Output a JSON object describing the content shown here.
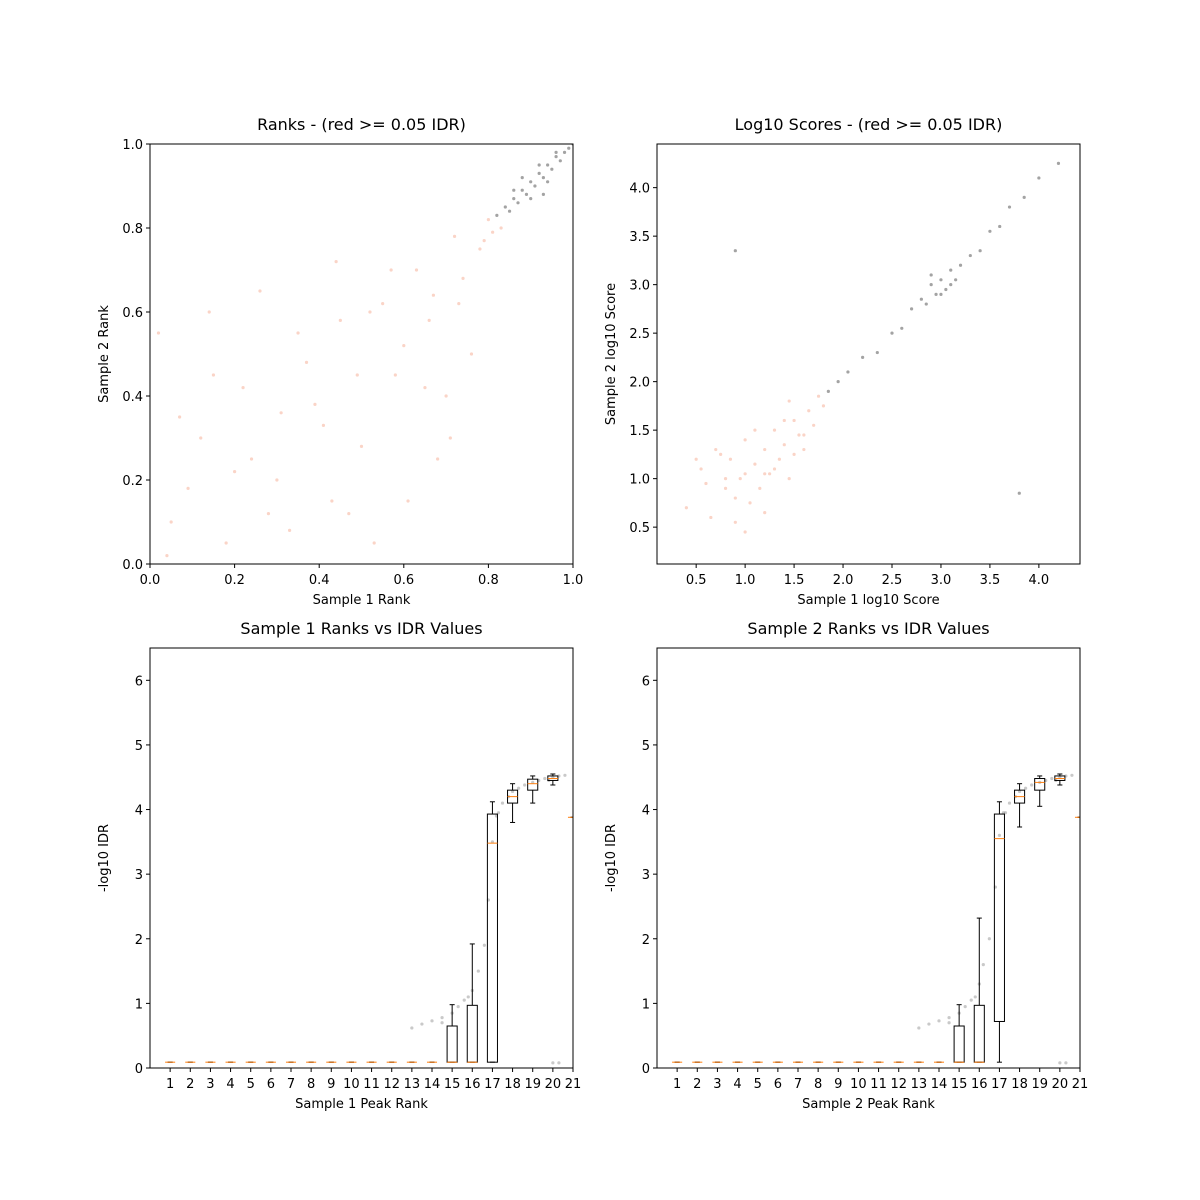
{
  "chart_data": [
    {
      "type": "scatter",
      "title": "Ranks - (red >= 0.05 IDR)",
      "xlabel": "Sample 1 Rank",
      "ylabel": "Sample 2 Rank",
      "xlim": [
        0,
        1
      ],
      "ylim": [
        0,
        1
      ],
      "xticks": [
        {
          "value": 0,
          "label": "0.0"
        },
        0.2,
        0.4,
        0.6,
        0.8,
        {
          "value": 1,
          "label": "1.0"
        }
      ],
      "yticks": [
        {
          "value": 0,
          "label": "0.0"
        },
        0.2,
        0.4,
        0.6,
        0.8,
        {
          "value": 1,
          "label": "1.0"
        }
      ],
      "series": [
        {
          "color": "#f4a083",
          "x": [
            0.05,
            0.12,
            0.18,
            0.22,
            0.3,
            0.35,
            0.41,
            0.47,
            0.52,
            0.58,
            0.63,
            0.68,
            0.72,
            0.76,
            0.8,
            0.02,
            0.09,
            0.15,
            0.26,
            0.33,
            0.39,
            0.44,
            0.5,
            0.55,
            0.61,
            0.66,
            0.7,
            0.74,
            0.78,
            0.83,
            0.07,
            0.2,
            0.28,
            0.37,
            0.45,
            0.53,
            0.6,
            0.67,
            0.71,
            0.79,
            0.04,
            0.14,
            0.24,
            0.31,
            0.43,
            0.49,
            0.57,
            0.65,
            0.73,
            0.81
          ],
          "y": [
            0.1,
            0.3,
            0.05,
            0.42,
            0.2,
            0.55,
            0.33,
            0.12,
            0.6,
            0.45,
            0.7,
            0.25,
            0.78,
            0.5,
            0.82,
            0.55,
            0.18,
            0.45,
            0.65,
            0.08,
            0.38,
            0.72,
            0.28,
            0.62,
            0.15,
            0.58,
            0.4,
            0.68,
            0.75,
            0.8,
            0.35,
            0.22,
            0.12,
            0.48,
            0.58,
            0.05,
            0.52,
            0.64,
            0.3,
            0.77,
            0.02,
            0.6,
            0.25,
            0.36,
            0.15,
            0.45,
            0.7,
            0.42,
            0.62,
            0.79
          ]
        },
        {
          "color": "#333333",
          "x": [
            0.82,
            0.84,
            0.85,
            0.86,
            0.87,
            0.88,
            0.89,
            0.9,
            0.91,
            0.92,
            0.93,
            0.94,
            0.95,
            0.96,
            0.97,
            0.98,
            0.99,
            1.0,
            0.88,
            0.9,
            0.92,
            0.94,
            0.96,
            0.86,
            0.93
          ],
          "y": [
            0.83,
            0.85,
            0.84,
            0.87,
            0.86,
            0.89,
            0.88,
            0.91,
            0.9,
            0.93,
            0.92,
            0.95,
            0.94,
            0.97,
            0.96,
            0.98,
            0.99,
            1.0,
            0.92,
            0.87,
            0.95,
            0.91,
            0.98,
            0.89,
            0.88
          ]
        }
      ]
    },
    {
      "type": "scatter",
      "title": "Log10 Scores - (red >= 0.05 IDR)",
      "xlabel": "Sample 1 log10 Score",
      "ylabel": "Sample 2 log10 Score",
      "xlim": [
        0.1,
        4.42
      ],
      "ylim": [
        0.12,
        4.45
      ],
      "xticks": [
        0.5,
        {
          "value": 1,
          "label": "1.0"
        },
        1.5,
        {
          "value": 2,
          "label": "2.0"
        },
        2.5,
        {
          "value": 3,
          "label": "3.0"
        },
        3.5,
        {
          "value": 4,
          "label": "4.0"
        }
      ],
      "yticks": [
        0.5,
        {
          "value": 1,
          "label": "1.0"
        },
        1.5,
        {
          "value": 2,
          "label": "2.0"
        },
        2.5,
        {
          "value": 3,
          "label": "3.0"
        },
        3.5,
        {
          "value": 4,
          "label": "4.0"
        }
      ],
      "series": [
        {
          "color": "#f4a083",
          "x": [
            0.4,
            0.55,
            0.65,
            0.7,
            0.8,
            0.85,
            0.9,
            0.95,
            1.0,
            1.05,
            1.1,
            1.15,
            1.2,
            1.25,
            1.3,
            1.35,
            1.4,
            1.45,
            1.5,
            1.55,
            1.6,
            1.65,
            1.7,
            1.75,
            1.8,
            0.6,
            0.75,
            0.9,
            1.0,
            1.1,
            1.2,
            1.3,
            1.4,
            1.5,
            1.6,
            0.5,
            0.8,
            1.0,
            1.2,
            1.45
          ],
          "y": [
            0.7,
            1.1,
            0.6,
            1.3,
            0.9,
            1.2,
            0.55,
            1.0,
            1.4,
            0.75,
            1.15,
            0.9,
            1.3,
            1.05,
            1.5,
            1.2,
            1.35,
            1.0,
            1.6,
            1.45,
            1.3,
            1.7,
            1.55,
            1.85,
            1.75,
            0.95,
            1.25,
            0.8,
            1.05,
            1.5,
            0.65,
            1.1,
            1.6,
            1.25,
            1.45,
            1.2,
            1.0,
            0.45,
            1.05,
            1.8
          ]
        },
        {
          "color": "#333333",
          "x": [
            1.85,
            1.95,
            2.05,
            2.2,
            2.35,
            2.5,
            2.6,
            2.7,
            2.8,
            2.85,
            2.9,
            2.95,
            3.0,
            3.05,
            3.1,
            3.15,
            3.2,
            3.3,
            3.4,
            3.5,
            3.6,
            3.7,
            3.85,
            4.0,
            4.2,
            2.9,
            3.0,
            3.1,
            0.9,
            3.8
          ],
          "y": [
            1.9,
            2.0,
            2.1,
            2.25,
            2.3,
            2.5,
            2.55,
            2.75,
            2.85,
            2.8,
            3.0,
            2.9,
            3.05,
            2.95,
            3.15,
            3.05,
            3.2,
            3.3,
            3.35,
            3.55,
            3.6,
            3.8,
            3.9,
            4.1,
            4.25,
            3.1,
            2.9,
            3.0,
            3.35,
            0.85
          ]
        }
      ]
    },
    {
      "type": "box",
      "title": "Sample 1 Ranks vs IDR Values",
      "xlabel": "Sample 1 Peak Rank",
      "ylabel": "-log10 IDR",
      "xlim": [
        0,
        21
      ],
      "ylim": [
        0,
        6.5
      ],
      "xticks": [
        1,
        2,
        3,
        4,
        5,
        6,
        7,
        8,
        9,
        10,
        11,
        12,
        13,
        14,
        15,
        16,
        17,
        18,
        19,
        20,
        21
      ],
      "yticks": [
        0,
        1,
        2,
        3,
        4,
        5,
        6
      ],
      "box_color": "#000000",
      "median_color": "#ff7f0e",
      "boxes": [
        {
          "position": 1,
          "whislo": 0.09,
          "q1": 0.09,
          "med": 0.09,
          "q3": 0.09,
          "whishi": 0.09
        },
        {
          "position": 2,
          "whislo": 0.09,
          "q1": 0.09,
          "med": 0.09,
          "q3": 0.09,
          "whishi": 0.09
        },
        {
          "position": 3,
          "whislo": 0.09,
          "q1": 0.09,
          "med": 0.09,
          "q3": 0.09,
          "whishi": 0.09
        },
        {
          "position": 4,
          "whislo": 0.09,
          "q1": 0.09,
          "med": 0.09,
          "q3": 0.09,
          "whishi": 0.09
        },
        {
          "position": 5,
          "whislo": 0.09,
          "q1": 0.09,
          "med": 0.09,
          "q3": 0.09,
          "whishi": 0.09
        },
        {
          "position": 6,
          "whislo": 0.09,
          "q1": 0.09,
          "med": 0.09,
          "q3": 0.09,
          "whishi": 0.09
        },
        {
          "position": 7,
          "whislo": 0.09,
          "q1": 0.09,
          "med": 0.09,
          "q3": 0.09,
          "whishi": 0.09
        },
        {
          "position": 8,
          "whislo": 0.09,
          "q1": 0.09,
          "med": 0.09,
          "q3": 0.09,
          "whishi": 0.09
        },
        {
          "position": 9,
          "whislo": 0.09,
          "q1": 0.09,
          "med": 0.09,
          "q3": 0.09,
          "whishi": 0.09
        },
        {
          "position": 10,
          "whislo": 0.09,
          "q1": 0.09,
          "med": 0.09,
          "q3": 0.09,
          "whishi": 0.09
        },
        {
          "position": 11,
          "whislo": 0.09,
          "q1": 0.09,
          "med": 0.09,
          "q3": 0.09,
          "whishi": 0.09
        },
        {
          "position": 12,
          "whislo": 0.09,
          "q1": 0.09,
          "med": 0.09,
          "q3": 0.09,
          "whishi": 0.09
        },
        {
          "position": 13,
          "whislo": 0.09,
          "q1": 0.09,
          "med": 0.09,
          "q3": 0.09,
          "whishi": 0.09
        },
        {
          "position": 14,
          "whislo": 0.09,
          "q1": 0.09,
          "med": 0.09,
          "q3": 0.09,
          "whishi": 0.09
        },
        {
          "position": 15,
          "whislo": 0.09,
          "q1": 0.09,
          "med": 0.09,
          "q3": 0.65,
          "whishi": 0.98
        },
        {
          "position": 16,
          "whislo": 0.09,
          "q1": 0.09,
          "med": 0.09,
          "q3": 0.97,
          "whishi": 1.92
        },
        {
          "position": 17,
          "whislo": 0.09,
          "q1": 0.09,
          "med": 3.48,
          "q3": 3.93,
          "whishi": 4.12
        },
        {
          "position": 18,
          "whislo": 3.8,
          "q1": 4.1,
          "med": 4.2,
          "q3": 4.3,
          "whishi": 4.4
        },
        {
          "position": 19,
          "whislo": 4.1,
          "q1": 4.3,
          "med": 4.4,
          "q3": 4.47,
          "whishi": 4.52
        },
        {
          "position": 20,
          "whislo": 4.38,
          "q1": 4.45,
          "med": 4.48,
          "q3": 4.52,
          "whishi": 4.55
        },
        {
          "position": 21,
          "whislo": 3.88,
          "q1": 3.88,
          "med": 3.88,
          "q3": 3.88,
          "whishi": 3.88
        }
      ],
      "series": [
        {
          "color": "#888888",
          "x": [
            13,
            13.5,
            14,
            14.5,
            15,
            15.3,
            15.6,
            16,
            16.3,
            16.6,
            16.8,
            17,
            17.2,
            17.5,
            17.8,
            18,
            18.3,
            18.6,
            19,
            19.3,
            19.6,
            20,
            20.3,
            20.6,
            14.5,
            15.8,
            17.3,
            19.8,
            20,
            20.3
          ],
          "y": [
            0.62,
            0.68,
            0.73,
            0.78,
            0.85,
            0.95,
            1.05,
            1.2,
            1.5,
            1.9,
            2.6,
            3.5,
            3.9,
            4.1,
            4.2,
            4.28,
            4.33,
            4.38,
            4.42,
            4.45,
            4.48,
            4.5,
            4.52,
            4.53,
            0.7,
            1.1,
            3.95,
            4.45,
            0.08,
            0.08
          ]
        }
      ]
    },
    {
      "type": "box",
      "title": "Sample 2 Ranks vs IDR Values",
      "xlabel": "Sample 2 Peak Rank",
      "ylabel": "-log10 IDR",
      "xlim": [
        0,
        21
      ],
      "ylim": [
        0,
        6.5
      ],
      "xticks": [
        1,
        2,
        3,
        4,
        5,
        6,
        7,
        8,
        9,
        10,
        11,
        12,
        13,
        14,
        15,
        16,
        17,
        18,
        19,
        20,
        21
      ],
      "yticks": [
        0,
        1,
        2,
        3,
        4,
        5,
        6
      ],
      "box_color": "#000000",
      "median_color": "#ff7f0e",
      "boxes": [
        {
          "position": 1,
          "whislo": 0.09,
          "q1": 0.09,
          "med": 0.09,
          "q3": 0.09,
          "whishi": 0.09
        },
        {
          "position": 2,
          "whislo": 0.09,
          "q1": 0.09,
          "med": 0.09,
          "q3": 0.09,
          "whishi": 0.09
        },
        {
          "position": 3,
          "whislo": 0.09,
          "q1": 0.09,
          "med": 0.09,
          "q3": 0.09,
          "whishi": 0.09
        },
        {
          "position": 4,
          "whislo": 0.09,
          "q1": 0.09,
          "med": 0.09,
          "q3": 0.09,
          "whishi": 0.09
        },
        {
          "position": 5,
          "whislo": 0.09,
          "q1": 0.09,
          "med": 0.09,
          "q3": 0.09,
          "whishi": 0.09
        },
        {
          "position": 6,
          "whislo": 0.09,
          "q1": 0.09,
          "med": 0.09,
          "q3": 0.09,
          "whishi": 0.09
        },
        {
          "position": 7,
          "whislo": 0.09,
          "q1": 0.09,
          "med": 0.09,
          "q3": 0.09,
          "whishi": 0.09
        },
        {
          "position": 8,
          "whislo": 0.09,
          "q1": 0.09,
          "med": 0.09,
          "q3": 0.09,
          "whishi": 0.09
        },
        {
          "position": 9,
          "whislo": 0.09,
          "q1": 0.09,
          "med": 0.09,
          "q3": 0.09,
          "whishi": 0.09
        },
        {
          "position": 10,
          "whislo": 0.09,
          "q1": 0.09,
          "med": 0.09,
          "q3": 0.09,
          "whishi": 0.09
        },
        {
          "position": 11,
          "whislo": 0.09,
          "q1": 0.09,
          "med": 0.09,
          "q3": 0.09,
          "whishi": 0.09
        },
        {
          "position": 12,
          "whislo": 0.09,
          "q1": 0.09,
          "med": 0.09,
          "q3": 0.09,
          "whishi": 0.09
        },
        {
          "position": 13,
          "whislo": 0.09,
          "q1": 0.09,
          "med": 0.09,
          "q3": 0.09,
          "whishi": 0.09
        },
        {
          "position": 14,
          "whislo": 0.09,
          "q1": 0.09,
          "med": 0.09,
          "q3": 0.09,
          "whishi": 0.09
        },
        {
          "position": 15,
          "whislo": 0.09,
          "q1": 0.09,
          "med": 0.09,
          "q3": 0.65,
          "whishi": 0.98
        },
        {
          "position": 16,
          "whislo": 0.09,
          "q1": 0.09,
          "med": 0.09,
          "q3": 0.97,
          "whishi": 2.32
        },
        {
          "position": 17,
          "whislo": 0.09,
          "q1": 0.72,
          "med": 3.55,
          "q3": 3.93,
          "whishi": 4.12
        },
        {
          "position": 18,
          "whislo": 3.73,
          "q1": 4.1,
          "med": 4.2,
          "q3": 4.3,
          "whishi": 4.4
        },
        {
          "position": 19,
          "whislo": 4.05,
          "q1": 4.3,
          "med": 4.42,
          "q3": 4.48,
          "whishi": 4.52
        },
        {
          "position": 20,
          "whislo": 4.38,
          "q1": 4.45,
          "med": 4.48,
          "q3": 4.52,
          "whishi": 4.55
        },
        {
          "position": 21,
          "whislo": 3.88,
          "q1": 3.88,
          "med": 3.88,
          "q3": 3.88,
          "whishi": 3.88
        }
      ],
      "series": [
        {
          "color": "#888888",
          "x": [
            13,
            13.5,
            14,
            14.5,
            15,
            15.3,
            15.6,
            16,
            16.2,
            16.5,
            16.8,
            17,
            17.2,
            17.5,
            17.8,
            18,
            18.3,
            18.6,
            19,
            19.3,
            19.6,
            20,
            20.3,
            20.6,
            14.5,
            15.8,
            17.3,
            19.8,
            20,
            20.3
          ],
          "y": [
            0.62,
            0.68,
            0.73,
            0.78,
            0.85,
            0.95,
            1.05,
            1.3,
            1.6,
            2.0,
            2.8,
            3.6,
            3.95,
            4.1,
            4.2,
            4.28,
            4.33,
            4.38,
            4.42,
            4.45,
            4.48,
            4.5,
            4.52,
            4.53,
            0.7,
            1.1,
            3.95,
            4.45,
            0.08,
            0.08
          ]
        }
      ]
    }
  ]
}
